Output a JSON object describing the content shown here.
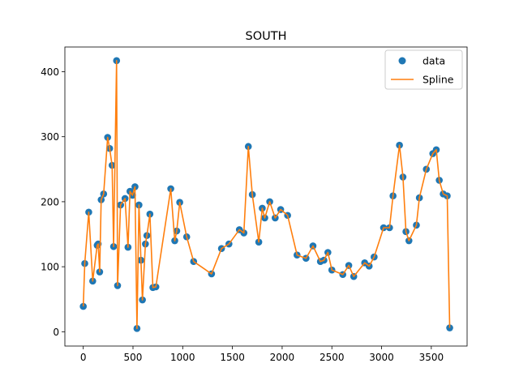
{
  "chart_data": {
    "type": "scatter",
    "title": "SOUTH",
    "xlabel": "",
    "ylabel": "",
    "xlim": [
      -185,
      3860
    ],
    "ylim": [
      -22,
      438
    ],
    "xticks": [
      0,
      500,
      1000,
      1500,
      2000,
      2500,
      3000,
      3500
    ],
    "yticks": [
      0,
      100,
      200,
      300,
      400
    ],
    "grid": false,
    "legend": {
      "placement": "top-right",
      "entries": [
        "data",
        "Spline"
      ]
    },
    "colors": {
      "data": "#1f77b4",
      "spline": "#ff7f0e"
    },
    "series": [
      {
        "name": "data",
        "kind": "scatter",
        "x": [
          0,
          15,
          55,
          95,
          140,
          150,
          165,
          180,
          205,
          245,
          265,
          290,
          305,
          335,
          345,
          375,
          420,
          450,
          470,
          495,
          520,
          540,
          560,
          580,
          595,
          625,
          640,
          670,
          700,
          730,
          880,
          920,
          940,
          970,
          1040,
          1110,
          1290,
          1390,
          1465,
          1570,
          1615,
          1660,
          1700,
          1765,
          1800,
          1825,
          1875,
          1930,
          1985,
          2055,
          2150,
          2240,
          2310,
          2385,
          2420,
          2460,
          2500,
          2610,
          2670,
          2720,
          2830,
          2875,
          2925,
          3020,
          3080,
          3115,
          3180,
          3215,
          3245,
          3275,
          3350,
          3380,
          3450,
          3515,
          3550,
          3580,
          3620,
          3660,
          3685
        ],
        "y": [
          39,
          105,
          184,
          78,
          133,
          135,
          92,
          203,
          212,
          299,
          282,
          256,
          131,
          417,
          71,
          195,
          205,
          130,
          216,
          210,
          223,
          5,
          195,
          110,
          49,
          135,
          148,
          181,
          68,
          69,
          220,
          140,
          155,
          199,
          146,
          108,
          89,
          128,
          135,
          157,
          152,
          285,
          211,
          138,
          190,
          175,
          200,
          175,
          188,
          179,
          118,
          113,
          132,
          108,
          110,
          122,
          95,
          88,
          102,
          85,
          106,
          101,
          115,
          160,
          160,
          209,
          287,
          238,
          154,
          140,
          164,
          206,
          250,
          274,
          280,
          233,
          212,
          209,
          6
        ]
      },
      {
        "name": "Spline",
        "kind": "line"
      }
    ]
  }
}
